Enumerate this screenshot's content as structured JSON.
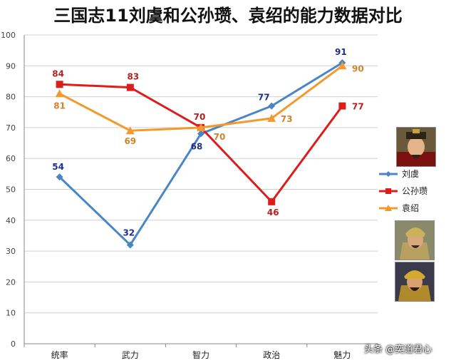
{
  "chart_data": {
    "type": "line",
    "title": "三国志11刘虞和公孙瓒、袁绍的能力数据对比",
    "categories": [
      "统率",
      "武力",
      "智力",
      "政治",
      "魅力"
    ],
    "ylim": [
      0,
      100
    ],
    "yticks": [
      0,
      10,
      20,
      30,
      40,
      50,
      60,
      70,
      80,
      90,
      100
    ],
    "grid": true,
    "legend_position": "right",
    "series": [
      {
        "name": "刘虞",
        "values": [
          54,
          32,
          68,
          77,
          91
        ],
        "color": "#4a86c5",
        "label_color": "#1f2f8f",
        "marker": "diamond",
        "labels": [
          "54",
          "32",
          "68",
          "77",
          "91"
        ]
      },
      {
        "name": "公孙瓒",
        "values": [
          84,
          83,
          70,
          46,
          77
        ],
        "color": "#dd1c1c",
        "label_color": "#b52020",
        "marker": "square",
        "labels": [
          "84",
          "83",
          "70",
          "46",
          "77"
        ]
      },
      {
        "name": "袁绍",
        "values": [
          81,
          69,
          70,
          73,
          90
        ],
        "color": "#f29a2e",
        "label_color": "#d2832b",
        "marker": "triangle",
        "labels": [
          "81",
          "69",
          "70",
          "73",
          "90"
        ]
      }
    ]
  },
  "watermark": "头条 @奕道君心",
  "portraits": [
    "liu-yu-portrait",
    "gongsun-zan-portrait",
    "yuan-shao-portrait"
  ]
}
